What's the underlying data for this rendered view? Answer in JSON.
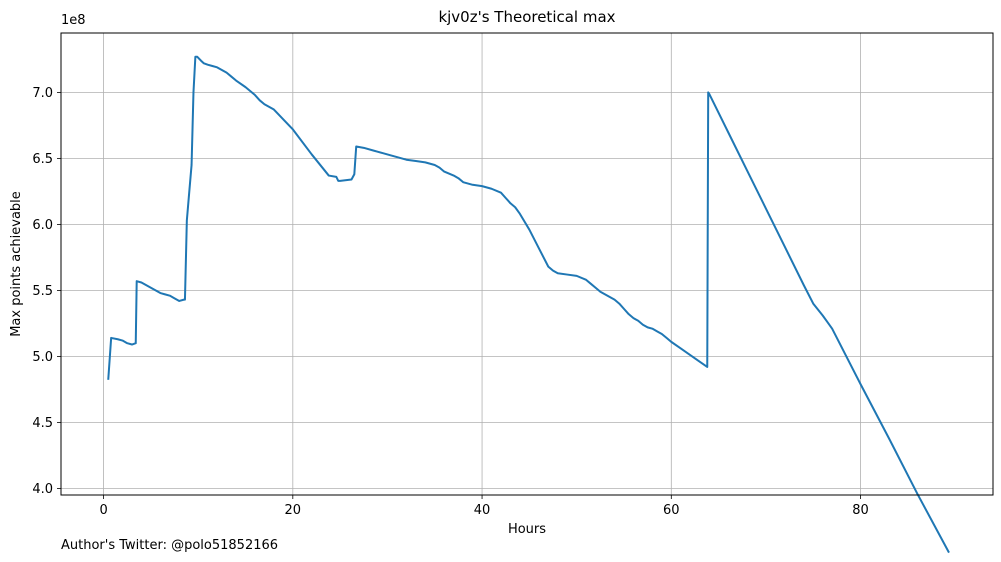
{
  "chart_data": {
    "type": "line",
    "title": "kjv0z's Theoretical max",
    "xlabel": "Hours",
    "ylabel": "Max points achievable",
    "y_offset_label": "1e8",
    "xlim": [
      -4.5,
      94
    ],
    "ylim": [
      3.95,
      7.45
    ],
    "x_ticks": [
      0,
      20,
      40,
      60,
      80
    ],
    "x_tick_labels": [
      "0",
      "20",
      "40",
      "60",
      "80"
    ],
    "y_ticks": [
      4.0,
      4.5,
      5.0,
      5.5,
      6.0,
      6.5,
      7.0
    ],
    "y_tick_labels": [
      "4.0",
      "4.5",
      "5.0",
      "5.5",
      "6.0",
      "6.5",
      "7.0"
    ],
    "grid": true,
    "line_color": "#1f77b4",
    "series": [
      {
        "name": "Max points achievable",
        "x": [
          0.5,
          0.8,
          1.5,
          2.0,
          2.5,
          3.0,
          3.4,
          3.5,
          4.0,
          4.5,
          5.0,
          5.5,
          6.0,
          6.5,
          7.0,
          7.5,
          8.0,
          8.5,
          8.6,
          8.8,
          9.0,
          9.3,
          9.5,
          9.7,
          9.9,
          10.3,
          10.6,
          11.0,
          11.5,
          12.0,
          12.5,
          13.0,
          13.5,
          14.0,
          15.0,
          16.0,
          16.5,
          17.0,
          17.5,
          18.0,
          20.0,
          22.0,
          23.8,
          24.6,
          24.8,
          25.0,
          26.2,
          26.5,
          26.7,
          27.5,
          28.5,
          29.0,
          30.0,
          31.0,
          32.0,
          33.0,
          34.0,
          35.0,
          35.5,
          36.0,
          37.0,
          37.5,
          38.0,
          39.0,
          40.0,
          41.0,
          42.0,
          42.5,
          43.0,
          43.5,
          44.0,
          45.0,
          46.0,
          47.0,
          47.5,
          48.0,
          49.0,
          50.0,
          51.0,
          51.5,
          52.0,
          52.5,
          53.0,
          54.0,
          54.5,
          55.0,
          55.5,
          56.0,
          56.5,
          57.0,
          57.5,
          58.0,
          58.5,
          59.0,
          59.5,
          60.0,
          61.0,
          62.0,
          63.0,
          63.8,
          63.9,
          64.0,
          66.0,
          68.0,
          70.0,
          72.0,
          74.0,
          75.0,
          76.0,
          76.5,
          77.0,
          80.0,
          83.0,
          86.0,
          89.3
        ],
        "y": [
          4.83,
          5.14,
          5.13,
          5.12,
          5.1,
          5.09,
          5.1,
          5.57,
          5.56,
          5.54,
          5.52,
          5.5,
          5.48,
          5.47,
          5.46,
          5.44,
          5.42,
          5.43,
          5.43,
          6.03,
          6.2,
          6.45,
          7.0,
          7.27,
          7.27,
          7.24,
          7.22,
          7.21,
          7.2,
          7.19,
          7.17,
          7.15,
          7.12,
          7.09,
          7.04,
          6.98,
          6.94,
          6.91,
          6.89,
          6.87,
          6.72,
          6.53,
          6.37,
          6.36,
          6.33,
          6.33,
          6.34,
          6.38,
          6.59,
          6.58,
          6.56,
          6.55,
          6.53,
          6.51,
          6.49,
          6.48,
          6.47,
          6.45,
          6.43,
          6.4,
          6.37,
          6.35,
          6.32,
          6.3,
          6.29,
          6.27,
          6.24,
          6.2,
          6.16,
          6.13,
          6.08,
          5.96,
          5.82,
          5.68,
          5.65,
          5.63,
          5.62,
          5.61,
          5.58,
          5.55,
          5.52,
          5.49,
          5.47,
          5.43,
          5.4,
          5.36,
          5.32,
          5.29,
          5.27,
          5.24,
          5.22,
          5.21,
          5.19,
          5.17,
          5.14,
          5.11,
          5.06,
          5.01,
          4.96,
          4.92,
          7.0,
          6.99,
          6.7,
          6.41,
          6.12,
          5.83,
          5.54,
          5.4,
          5.31,
          5.26,
          5.21,
          4.79,
          4.38,
          3.96,
          3.52
        ]
      }
    ]
  },
  "footer": {
    "note": "Author's Twitter: @polo51852166"
  }
}
